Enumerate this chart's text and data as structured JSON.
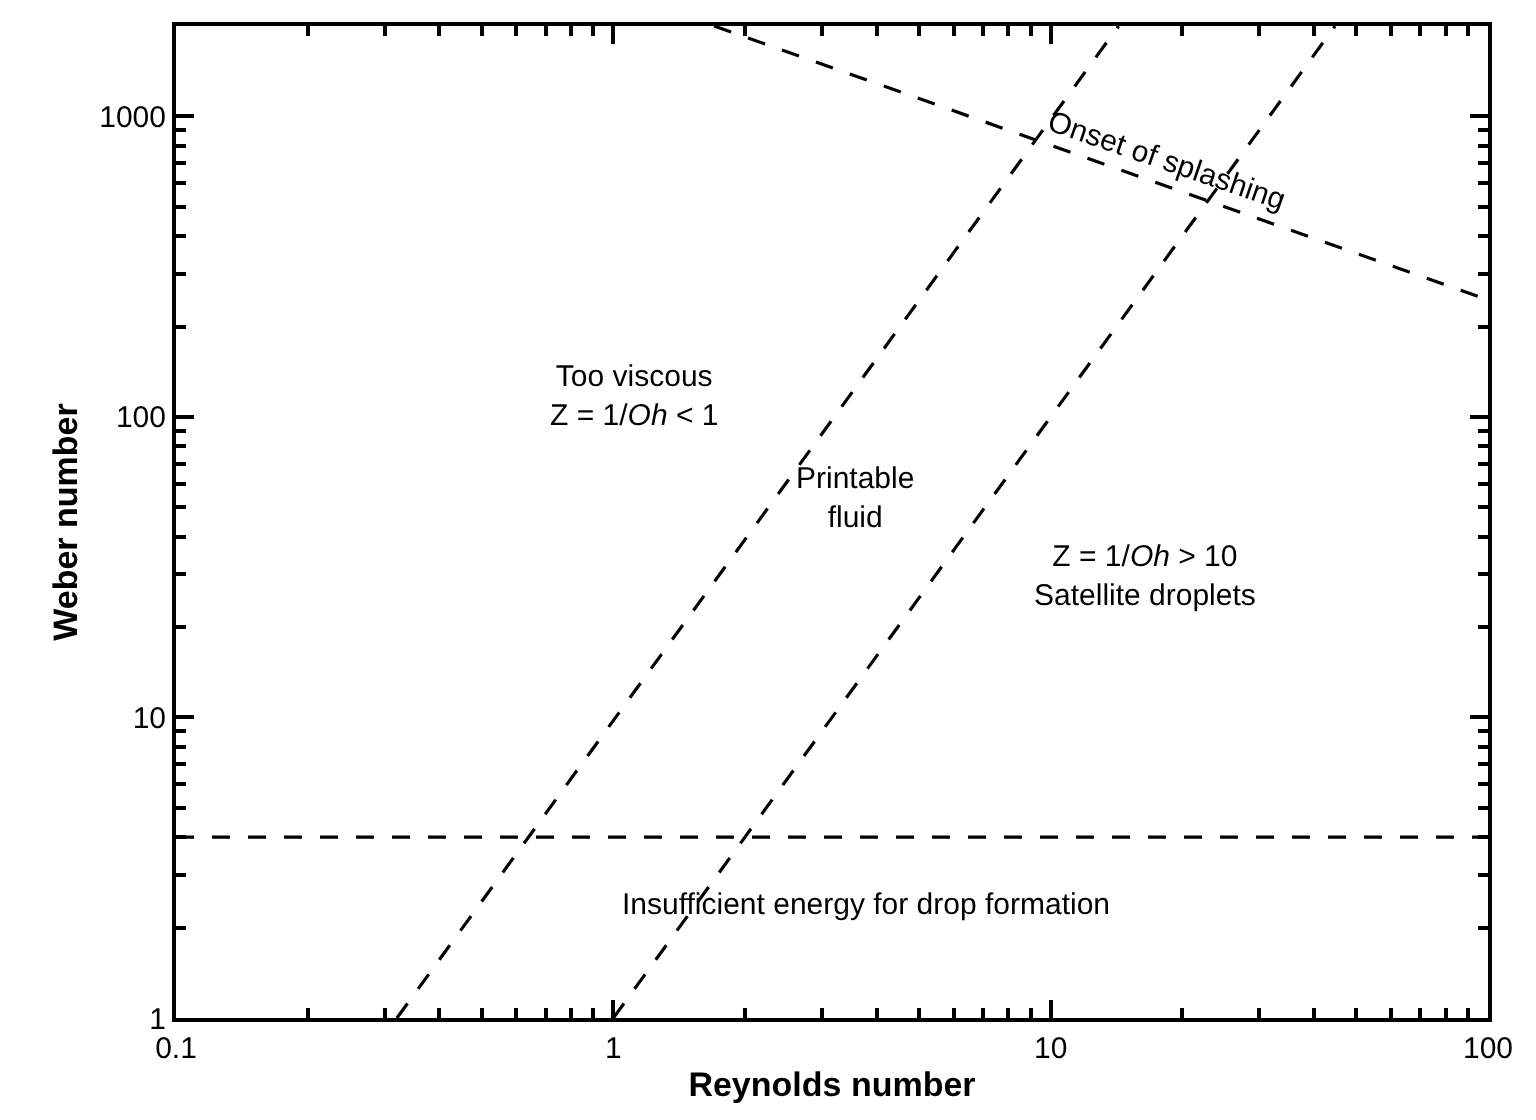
{
  "chart_data": {
    "type": "line",
    "xlabel": "Reynolds number",
    "ylabel": "Weber number",
    "log": "xy",
    "xlim": [
      0.1,
      100
    ],
    "xticks": [
      0.1,
      1,
      10,
      100
    ],
    "ylim": [
      1,
      2000
    ],
    "yticks": [
      1,
      10,
      100,
      1000
    ],
    "marker": "none",
    "line_style": "dashed",
    "series": [
      {
        "color": "#000000",
        "x": [
          0.32,
          14.3
        ],
        "values": [
          1,
          2000
        ]
      },
      {
        "color": "#000000",
        "x": [
          1.0,
          44.7
        ],
        "values": [
          1,
          2000
        ]
      },
      {
        "color": "#000000",
        "x": [
          1.7,
          100
        ],
        "values": [
          2000,
          245
        ]
      }
    ],
    "ref_lines": [
      {
        "axis": "y",
        "value": 4,
        "color": "#000000",
        "line_style": "dashed"
      }
    ],
    "annotations": [
      "Too viscous\nZ = 1/Oh < 1",
      "Printable\nfluid",
      "Z = 1/Oh > 10\nSatellite droplets",
      "Insufficient energy for drop formation",
      {
        "text": "Onset of splashing",
        "x": 18.3,
        "y": 588
      }
    ]
  }
}
